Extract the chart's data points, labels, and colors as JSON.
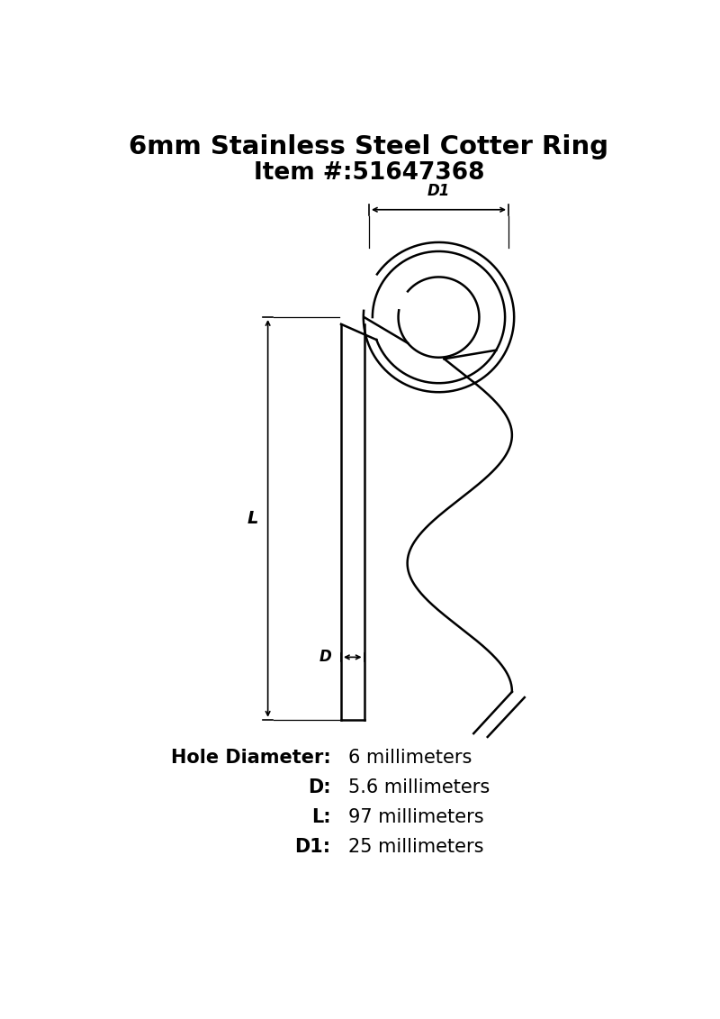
{
  "title": "6mm Stainless Steel Cotter Ring",
  "item_label": "Item #:",
  "item_number": "51647368",
  "bg_color": "#ffffff",
  "line_color": "#000000",
  "dim_color": "#000000",
  "specs": [
    {
      "label": "Hole Diameter:",
      "value": "6 millimeters"
    },
    {
      "label": "D:",
      "value": "5.6 millimeters"
    },
    {
      "label": "L:",
      "value": "97 millimeters"
    },
    {
      "label": "D1:",
      "value": "25 millimeters"
    }
  ],
  "title_fontsize": 21,
  "item_fontsize": 19,
  "spec_label_fontsize": 15,
  "spec_value_fontsize": 15,
  "dim_label_fontsize": 12
}
